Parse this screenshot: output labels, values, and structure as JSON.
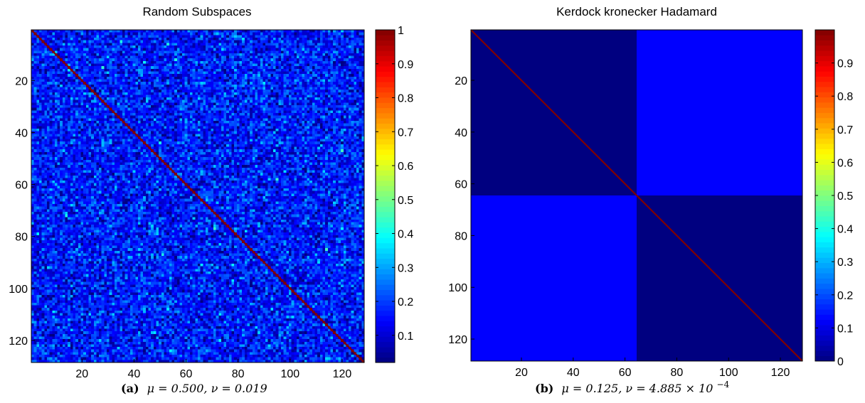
{
  "figure": {
    "panels": [
      {
        "title": "Random Subspaces",
        "caption_label": "(a)",
        "caption_formula": "μ = 0.500, ν = 0.019",
        "caption_sup": ""
      },
      {
        "title": "Kerdock kronecker Hadamard",
        "caption_label": "(b)",
        "caption_formula": "μ = 0.125, ν = 4.885 × 10",
        "caption_sup": "−4"
      }
    ]
  },
  "chart_data": [
    {
      "type": "heatmap",
      "title": "Random Subspaces",
      "matrix_size": 128,
      "description_of_values": "random off-diagonal coherence values, diagonal = 1",
      "diagonal_value": 1,
      "offdiag_mean": 0.16,
      "offdiag_spread": 0.07,
      "xticks": [
        20,
        40,
        60,
        80,
        100,
        120
      ],
      "yticks": [
        20,
        40,
        60,
        80,
        100,
        120
      ],
      "xlim": [
        1,
        128
      ],
      "ylim": [
        1,
        128
      ],
      "y_reversed": true,
      "colorbar": {
        "colormap": "jet",
        "min": 0.02,
        "max": 1,
        "ticks": [
          0.1,
          0.2,
          0.3,
          0.4,
          0.5,
          0.6,
          0.7,
          0.8,
          0.9,
          1
        ],
        "tick_labels": [
          "0.1",
          "0.2",
          "0.3",
          "0.4",
          "0.5",
          "0.6",
          "0.7",
          "0.8",
          "0.9",
          "1"
        ]
      },
      "seed": 7
    },
    {
      "type": "heatmap",
      "title": "Kerdock kronecker Hadamard",
      "matrix_size": 128,
      "diagonal_value": 1,
      "blocks": [
        {
          "rows": [
            1,
            64
          ],
          "cols": [
            1,
            64
          ],
          "value": 0.0
        },
        {
          "rows": [
            1,
            64
          ],
          "cols": [
            65,
            128
          ],
          "value": 0.125
        },
        {
          "rows": [
            65,
            128
          ],
          "cols": [
            1,
            64
          ],
          "value": 0.125
        },
        {
          "rows": [
            65,
            128
          ],
          "cols": [
            65,
            128
          ],
          "value": 0.0
        }
      ],
      "xticks": [
        20,
        40,
        60,
        80,
        100,
        120
      ],
      "yticks": [
        20,
        40,
        60,
        80,
        100,
        120
      ],
      "xlim": [
        1,
        128
      ],
      "ylim": [
        1,
        128
      ],
      "y_reversed": true,
      "colorbar": {
        "colormap": "jet",
        "min": 0,
        "max": 1,
        "ticks": [
          0,
          0.1,
          0.2,
          0.3,
          0.4,
          0.5,
          0.6,
          0.7,
          0.8,
          0.9
        ],
        "tick_labels": [
          "0",
          "0.1",
          "0.2",
          "0.3",
          "0.4",
          "0.5",
          "0.6",
          "0.7",
          "0.8",
          "0.9"
        ]
      }
    }
  ]
}
